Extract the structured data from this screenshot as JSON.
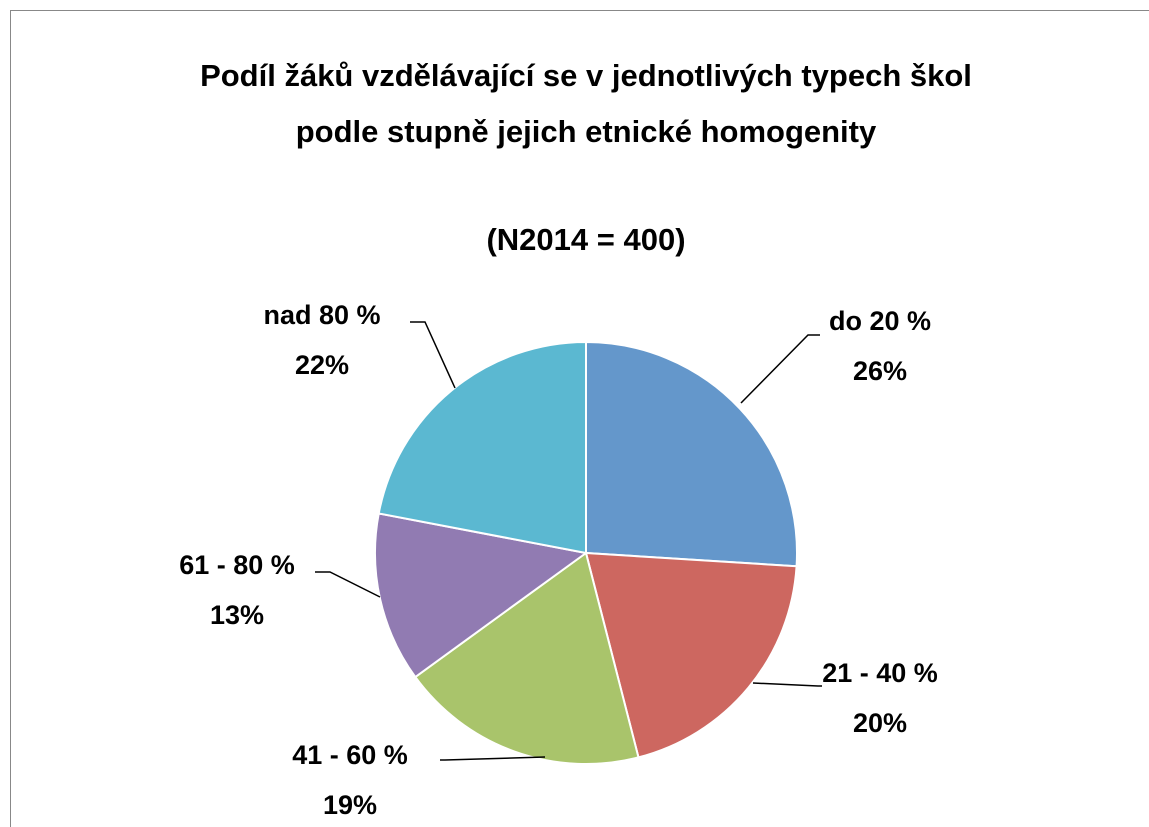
{
  "chart_data": {
    "type": "pie",
    "title": "Podíl žáků vzdělávající se v jednotlivých typech škol podle stupně jejich etnické homogenity",
    "subtitle": "(N2014 = 400)",
    "categories": [
      "do 20 %",
      "21 - 40 %",
      "41 - 60 %",
      "61 - 80 %",
      "nad 80 %"
    ],
    "values": [
      26,
      20,
      19,
      13,
      22
    ],
    "value_labels": [
      "26%",
      "20%",
      "19%",
      "13%",
      "22%"
    ],
    "colors": [
      "#6497cb",
      "#cd6760",
      "#a9c46b",
      "#917bb2",
      "#5bb8d1"
    ]
  }
}
